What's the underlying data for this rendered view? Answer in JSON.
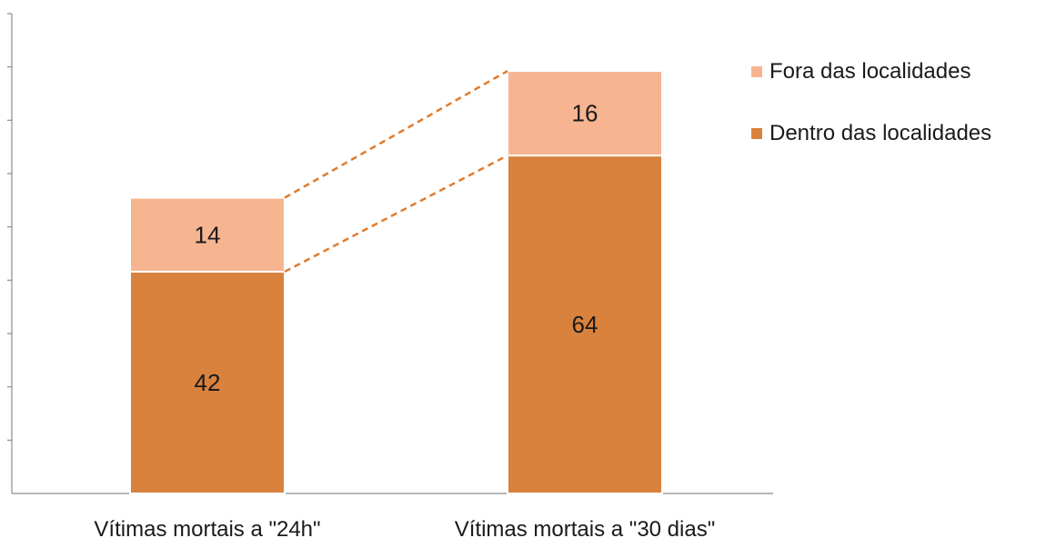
{
  "chart_data": {
    "type": "bar",
    "stacked": true,
    "categories": [
      "Vítimas mortais a \"24h\"",
      "Vítimas mortais a \"30 dias\""
    ],
    "series": [
      {
        "name": "Dentro das localidades",
        "values": [
          42,
          64
        ],
        "color": "#d9823e"
      },
      {
        "name": "Fora das localidades",
        "values": [
          14,
          16
        ],
        "color": "#f7b491"
      }
    ],
    "ylim": [
      0,
      90
    ],
    "grid": false,
    "connector_lines": true,
    "connector_color": "#e07b2c",
    "legend_position": "right",
    "legend_order": [
      "Fora das localidades",
      "Dentro das localidades"
    ]
  }
}
